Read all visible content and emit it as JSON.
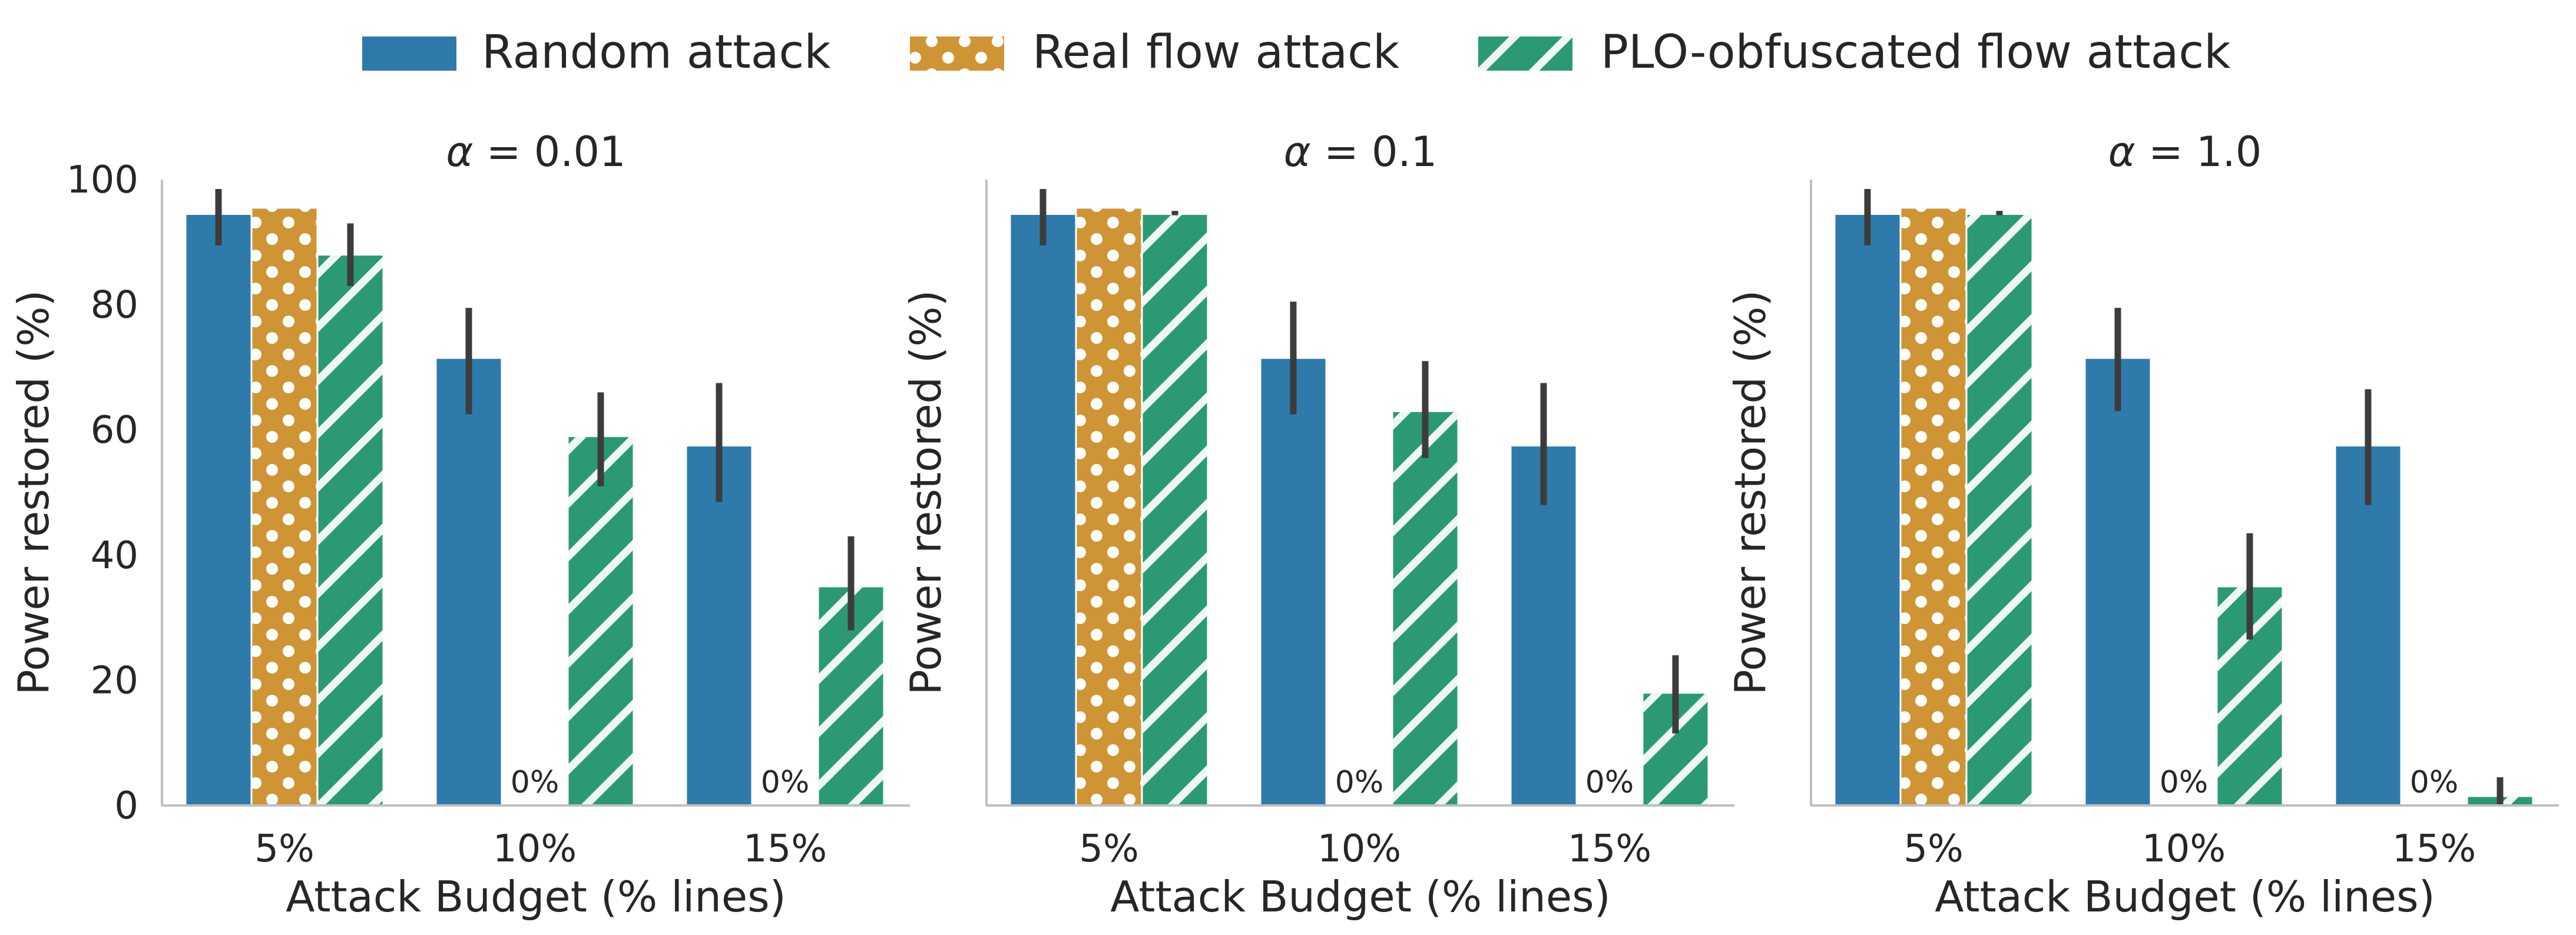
{
  "colors": {
    "random": "#2e7bab",
    "real": "#cf9433",
    "plo": "#2b9a74",
    "errorbar": "#3c3c3c",
    "axis": "#bfbfbf",
    "text": "#262626"
  },
  "legend": {
    "items": [
      {
        "key": "random",
        "label": "Random attack",
        "pattern": "solid",
        "icon": "solid-swatch-icon"
      },
      {
        "key": "real",
        "label": "Real flow attack",
        "pattern": "dots",
        "icon": "dotted-swatch-icon"
      },
      {
        "key": "plo",
        "label": "PLO-obfuscated flow attack",
        "pattern": "stripes",
        "icon": "striped-swatch-icon"
      }
    ]
  },
  "chart_data": [
    {
      "type": "bar",
      "title_symbol": "α",
      "title_value": "= 0.01",
      "xlabel": "Attack Budget (% lines)",
      "ylabel": "Power restored (%)",
      "ylim": [
        0,
        100
      ],
      "yticks": [
        0,
        20,
        40,
        60,
        80,
        100
      ],
      "show_yticks": true,
      "categories": [
        "5%",
        "10%",
        "15%"
      ],
      "series": [
        {
          "name": "Random attack",
          "key": "random",
          "values": [
            94.5,
            71.5,
            57.5
          ],
          "err_low": [
            89.5,
            62.5,
            48.5
          ],
          "err_high": [
            98.5,
            79.5,
            67.5
          ]
        },
        {
          "name": "Real flow attack",
          "key": "real",
          "values": [
            95.5,
            0,
            0
          ],
          "err_low": [
            null,
            null,
            null
          ],
          "err_high": [
            null,
            null,
            null
          ]
        },
        {
          "name": "PLO-obfuscated flow attack",
          "key": "plo",
          "values": [
            88,
            59,
            35
          ],
          "err_low": [
            83,
            51,
            28
          ],
          "err_high": [
            93,
            66,
            43
          ]
        }
      ],
      "zero_labels": [
        "",
        "0%",
        "0%"
      ]
    },
    {
      "type": "bar",
      "title_symbol": "α",
      "title_value": "= 0.1",
      "xlabel": "Attack Budget (% lines)",
      "ylabel": "Power restored (%)",
      "ylim": [
        0,
        100
      ],
      "yticks": [
        0,
        20,
        40,
        60,
        80,
        100
      ],
      "show_yticks": false,
      "categories": [
        "5%",
        "10%",
        "15%"
      ],
      "series": [
        {
          "name": "Random attack",
          "key": "random",
          "values": [
            94.5,
            71.5,
            57.5
          ],
          "err_low": [
            89.5,
            62.5,
            48
          ],
          "err_high": [
            98.5,
            80.5,
            67.5
          ]
        },
        {
          "name": "Real flow attack",
          "key": "real",
          "values": [
            95.5,
            0,
            0
          ],
          "err_low": [
            null,
            null,
            null
          ],
          "err_high": [
            null,
            null,
            null
          ]
        },
        {
          "name": "PLO-obfuscated flow attack",
          "key": "plo",
          "values": [
            94.5,
            63,
            18
          ],
          "err_low": [
            94.3,
            55.5,
            11.5
          ],
          "err_high": [
            95,
            71,
            24
          ]
        }
      ],
      "zero_labels": [
        "",
        "0%",
        "0%"
      ]
    },
    {
      "type": "bar",
      "title_symbol": "α",
      "title_value": "= 1.0",
      "xlabel": "Attack Budget (% lines)",
      "ylabel": "Power restored (%)",
      "ylim": [
        0,
        100
      ],
      "yticks": [
        0,
        20,
        40,
        60,
        80,
        100
      ],
      "show_yticks": false,
      "categories": [
        "5%",
        "10%",
        "15%"
      ],
      "series": [
        {
          "name": "Random attack",
          "key": "random",
          "values": [
            94.5,
            71.5,
            57.5
          ],
          "err_low": [
            89.5,
            63,
            48
          ],
          "err_high": [
            98.5,
            79.5,
            66.5
          ]
        },
        {
          "name": "Real flow attack",
          "key": "real",
          "values": [
            95.5,
            0,
            0
          ],
          "err_low": [
            null,
            null,
            null
          ],
          "err_high": [
            null,
            null,
            null
          ]
        },
        {
          "name": "PLO-obfuscated flow attack",
          "key": "plo",
          "values": [
            94.5,
            35,
            1.5
          ],
          "err_low": [
            94.3,
            26.5,
            0
          ],
          "err_high": [
            95,
            43.5,
            4.5
          ]
        }
      ],
      "zero_labels": [
        "",
        "0%",
        "0%"
      ]
    }
  ]
}
